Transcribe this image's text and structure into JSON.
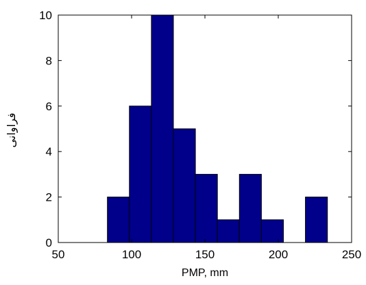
{
  "chart_data": {
    "type": "bar",
    "subtype": "histogram",
    "xlabel": "PMP, mm",
    "ylabel": "فراوانی",
    "xlim": [
      50,
      250
    ],
    "ylim": [
      0,
      10
    ],
    "xticks": [
      50,
      100,
      150,
      200,
      250
    ],
    "yticks": [
      0,
      2,
      4,
      6,
      8,
      10
    ],
    "grid": false,
    "bar_color": "#00008B",
    "edge_color": "#000000",
    "bins": [
      {
        "x0": 83.5,
        "x1": 98.5,
        "value": 2
      },
      {
        "x0": 98.5,
        "x1": 113.5,
        "value": 6
      },
      {
        "x0": 113.5,
        "x1": 128.5,
        "value": 10
      },
      {
        "x0": 128.5,
        "x1": 143.5,
        "value": 5
      },
      {
        "x0": 143.5,
        "x1": 158.5,
        "value": 3
      },
      {
        "x0": 158.5,
        "x1": 173.5,
        "value": 1
      },
      {
        "x0": 173.5,
        "x1": 188.5,
        "value": 3
      },
      {
        "x0": 188.5,
        "x1": 203.5,
        "value": 1
      },
      {
        "x0": 203.5,
        "x1": 218.5,
        "value": 0
      },
      {
        "x0": 218.5,
        "x1": 233.5,
        "value": 2
      }
    ]
  }
}
